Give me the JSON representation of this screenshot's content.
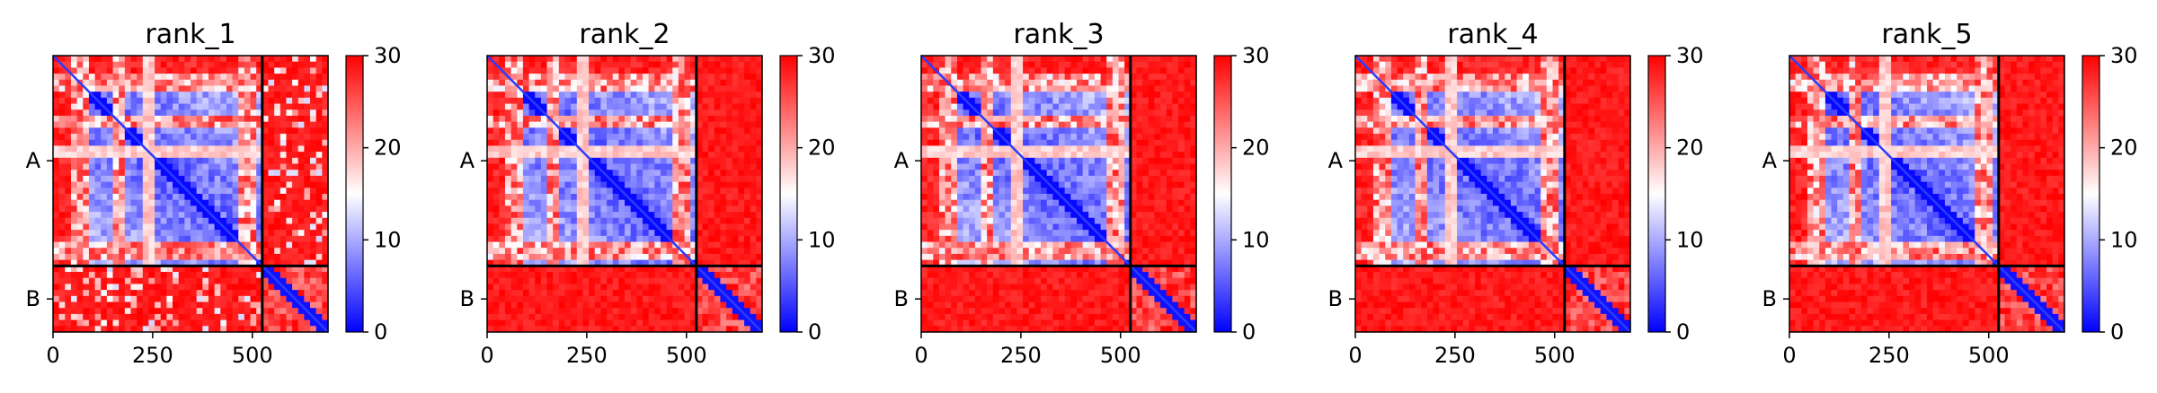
{
  "chart_data": [
    {
      "type": "heatmap",
      "title": "rank_1",
      "x_ticks": [
        0,
        250,
        500
      ],
      "x_range": [
        0,
        690
      ],
      "y_categories": [
        "A",
        "B"
      ],
      "chain_break": 525,
      "colorbar": {
        "ticks": [
          0,
          10,
          20,
          30
        ],
        "range": [
          0,
          30
        ],
        "colormap": [
          "#0000ff",
          "#ffffff",
          "#ff0000"
        ]
      },
      "ab_block_pattern": "noisy"
    },
    {
      "type": "heatmap",
      "title": "rank_2",
      "x_ticks": [
        0,
        250,
        500
      ],
      "x_range": [
        0,
        690
      ],
      "y_categories": [
        "A",
        "B"
      ],
      "chain_break": 525,
      "colorbar": {
        "ticks": [
          0,
          10,
          20,
          30
        ],
        "range": [
          0,
          30
        ],
        "colormap": [
          "#0000ff",
          "#ffffff",
          "#ff0000"
        ]
      },
      "ab_block_pattern": "saturated"
    },
    {
      "type": "heatmap",
      "title": "rank_3",
      "x_ticks": [
        0,
        250,
        500
      ],
      "x_range": [
        0,
        690
      ],
      "y_categories": [
        "A",
        "B"
      ],
      "chain_break": 525,
      "colorbar": {
        "ticks": [
          0,
          10,
          20,
          30
        ],
        "range": [
          0,
          30
        ],
        "colormap": [
          "#0000ff",
          "#ffffff",
          "#ff0000"
        ]
      },
      "ab_block_pattern": "saturated"
    },
    {
      "type": "heatmap",
      "title": "rank_4",
      "x_ticks": [
        0,
        250,
        500
      ],
      "x_range": [
        0,
        690
      ],
      "y_categories": [
        "A",
        "B"
      ],
      "chain_break": 525,
      "colorbar": {
        "ticks": [
          0,
          10,
          20,
          30
        ],
        "range": [
          0,
          30
        ],
        "colormap": [
          "#0000ff",
          "#ffffff",
          "#ff0000"
        ]
      },
      "ab_block_pattern": "saturated"
    },
    {
      "type": "heatmap",
      "title": "rank_5",
      "x_ticks": [
        0,
        250,
        500
      ],
      "x_range": [
        0,
        690
      ],
      "y_categories": [
        "A",
        "B"
      ],
      "chain_break": 525,
      "colorbar": {
        "ticks": [
          0,
          10,
          20,
          30
        ],
        "range": [
          0,
          30
        ],
        "colormap": [
          "#0000ff",
          "#ffffff",
          "#ff0000"
        ]
      },
      "ab_block_pattern": "saturated"
    }
  ]
}
